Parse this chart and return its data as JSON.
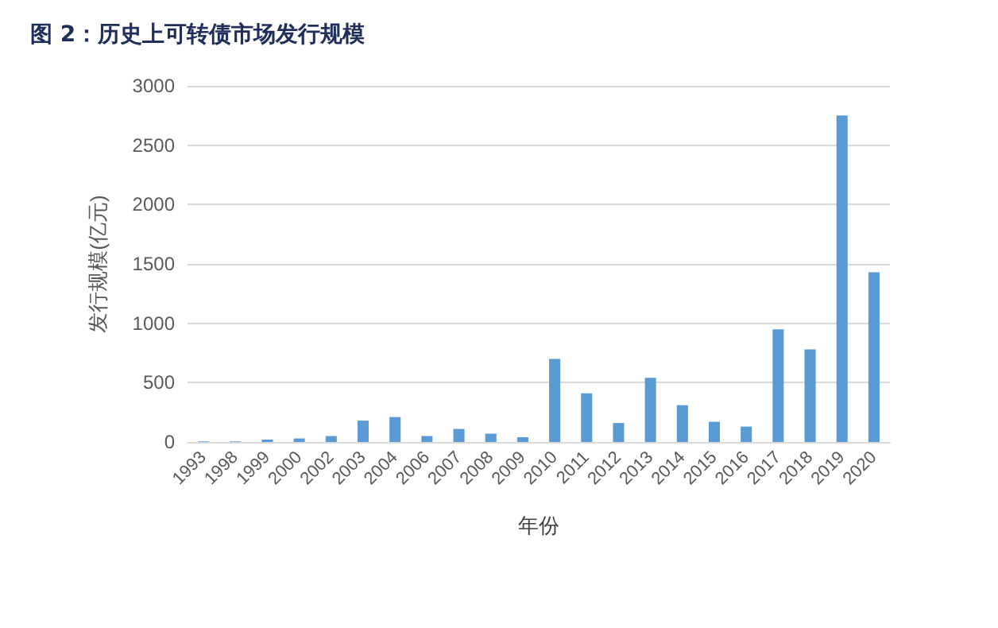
{
  "chart_data": {
    "type": "bar",
    "title": "图 2：历史上可转债市场发行规模",
    "xlabel": "年份",
    "ylabel": "发行规模(亿元)",
    "categories": [
      "1993",
      "1998",
      "1999",
      "2000",
      "2002",
      "2003",
      "2004",
      "2006",
      "2007",
      "2008",
      "2009",
      "2010",
      "2011",
      "2012",
      "2013",
      "2014",
      "2015",
      "2016",
      "2017",
      "2018",
      "2019",
      "2020"
    ],
    "values": [
      5,
      5,
      20,
      30,
      50,
      180,
      210,
      50,
      110,
      70,
      40,
      700,
      410,
      160,
      540,
      310,
      170,
      130,
      950,
      780,
      2750,
      1430
    ],
    "color": "#5b9bd5",
    "ylim": [
      0,
      3000
    ],
    "yticks": [
      0,
      500,
      1000,
      1500,
      2000,
      2500,
      3000
    ],
    "grid": "y"
  }
}
